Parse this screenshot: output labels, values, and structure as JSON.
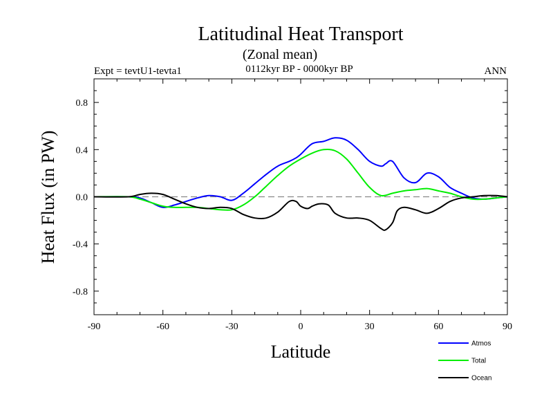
{
  "chart_data": {
    "type": "line",
    "title": "Latitudinal Heat Transport",
    "subtitle": "(Zonal mean)",
    "left_label": "Expt = tevtU1-tevta1",
    "center_label": "0112kyr BP - 0000kyr BP",
    "right_label": "ANN",
    "xlabel": "Latitude",
    "ylabel": "Heat Flux (in PW)",
    "xlim": [
      -90,
      90
    ],
    "ylim": [
      -1.0,
      1.0
    ],
    "x_ticks": [
      -90,
      -60,
      -30,
      0,
      30,
      60,
      90
    ],
    "x_tick_labels": [
      "-90",
      "-60",
      "-30",
      "0",
      "30",
      "60",
      "90"
    ],
    "y_ticks": [
      -0.8,
      -0.4,
      0.0,
      0.4,
      0.8
    ],
    "y_tick_labels": [
      "-0.8",
      "-0.4",
      "0.0",
      "0.4",
      "0.8"
    ],
    "zero_line": "dashed gray",
    "legend_position": "bottom-right",
    "series": [
      {
        "name": "Atmos",
        "color": "#0000ff",
        "x": [
          -90,
          -75,
          -70,
          -65,
          -60,
          -55,
          -50,
          -45,
          -40,
          -35,
          -30,
          -25,
          -20,
          -15,
          -10,
          -5,
          -2,
          0,
          5,
          10,
          15,
          20,
          25,
          30,
          35,
          37,
          40,
          45,
          50,
          55,
          60,
          65,
          70,
          75,
          80,
          85,
          90
        ],
        "values": [
          0.0,
          0.0,
          -0.01,
          -0.05,
          -0.09,
          -0.07,
          -0.04,
          -0.01,
          0.01,
          0.0,
          -0.03,
          0.03,
          0.11,
          0.19,
          0.26,
          0.3,
          0.33,
          0.36,
          0.45,
          0.47,
          0.5,
          0.48,
          0.4,
          0.3,
          0.26,
          0.28,
          0.3,
          0.16,
          0.12,
          0.2,
          0.17,
          0.08,
          0.03,
          -0.01,
          -0.02,
          -0.01,
          0.0
        ]
      },
      {
        "name": "Total",
        "color": "#00ee00",
        "x": [
          -90,
          -75,
          -70,
          -65,
          -60,
          -55,
          -50,
          -45,
          -40,
          -35,
          -30,
          -25,
          -20,
          -15,
          -10,
          -5,
          0,
          5,
          10,
          15,
          20,
          25,
          30,
          35,
          40,
          45,
          50,
          55,
          60,
          65,
          70,
          75,
          80,
          85,
          90
        ],
        "values": [
          0.0,
          0.0,
          -0.02,
          -0.05,
          -0.08,
          -0.09,
          -0.09,
          -0.09,
          -0.1,
          -0.11,
          -0.11,
          -0.07,
          0.0,
          0.09,
          0.18,
          0.26,
          0.32,
          0.37,
          0.4,
          0.39,
          0.32,
          0.2,
          0.08,
          0.01,
          0.03,
          0.05,
          0.06,
          0.07,
          0.05,
          0.03,
          0.0,
          -0.02,
          -0.02,
          -0.01,
          0.0
        ]
      },
      {
        "name": "Ocean",
        "color": "#000000",
        "x": [
          -90,
          -75,
          -70,
          -65,
          -60,
          -55,
          -50,
          -45,
          -40,
          -35,
          -30,
          -25,
          -20,
          -15,
          -10,
          -5,
          -2,
          0,
          3,
          5,
          8,
          12,
          15,
          20,
          25,
          30,
          35,
          37,
          40,
          42,
          45,
          50,
          55,
          60,
          65,
          70,
          75,
          80,
          85,
          90
        ],
        "values": [
          0.0,
          0.0,
          0.02,
          0.03,
          0.02,
          -0.02,
          -0.06,
          -0.09,
          -0.1,
          -0.09,
          -0.1,
          -0.15,
          -0.18,
          -0.18,
          -0.13,
          -0.04,
          -0.04,
          -0.08,
          -0.1,
          -0.08,
          -0.06,
          -0.07,
          -0.14,
          -0.18,
          -0.18,
          -0.2,
          -0.27,
          -0.28,
          -0.22,
          -0.12,
          -0.09,
          -0.11,
          -0.14,
          -0.1,
          -0.04,
          -0.01,
          0.0,
          0.01,
          0.01,
          0.0
        ]
      }
    ]
  }
}
